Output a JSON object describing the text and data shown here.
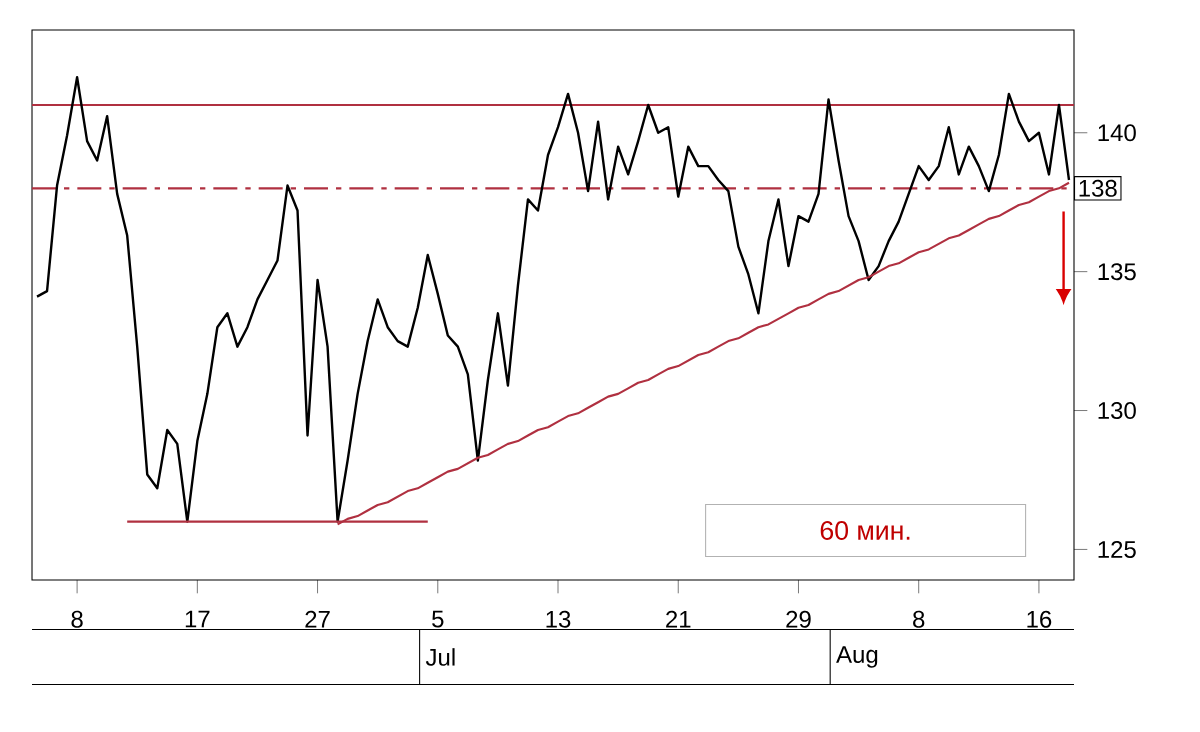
{
  "chart_data": {
    "type": "line",
    "categories": [
      null,
      null,
      null,
      null,
      "8",
      null,
      null,
      null,
      null,
      null,
      null,
      null,
      null,
      null,
      null,
      null,
      "17",
      null,
      null,
      null,
      null,
      null,
      null,
      null,
      null,
      null,
      null,
      null,
      "27",
      null,
      null,
      null,
      null,
      null,
      null,
      null,
      null,
      null,
      null,
      null,
      "5",
      null,
      null,
      null,
      null,
      null,
      null,
      null,
      null,
      null,
      null,
      null,
      "13",
      null,
      null,
      null,
      null,
      null,
      null,
      null,
      null,
      null,
      null,
      null,
      "21",
      null,
      null,
      null,
      null,
      null,
      null,
      null,
      null,
      null,
      null,
      null,
      "29",
      null,
      null,
      null,
      null,
      null,
      null,
      null,
      null,
      null,
      null,
      null,
      "8",
      null,
      null,
      null,
      null,
      null,
      null,
      null,
      null,
      null,
      null,
      null,
      "16",
      null,
      null,
      null
    ],
    "series": [
      {
        "color": "#000000",
        "values": [
          134.1,
          134.3,
          138.1,
          139.9,
          142.0,
          139.7,
          139.0,
          140.6,
          137.8,
          136.3,
          132.3,
          127.7,
          127.2,
          129.3,
          128.8,
          126.0,
          128.9,
          130.6,
          133.0,
          133.5,
          132.3,
          133.0,
          134.0,
          134.7,
          135.4,
          138.1,
          137.2,
          129.1,
          134.7,
          132.3,
          126.0,
          128.2,
          130.6,
          132.5,
          134.0,
          133.0,
          132.5,
          132.3,
          133.7,
          135.6,
          134.2,
          132.7,
          132.3,
          131.3,
          128.2,
          131.1,
          133.5,
          130.9,
          134.5,
          137.6,
          137.2,
          139.2,
          140.2,
          141.4,
          140.0,
          137.9,
          140.4,
          137.6,
          139.5,
          138.5,
          139.7,
          141.0,
          140.0,
          140.2,
          137.7,
          139.5,
          138.8,
          138.8,
          138.3,
          137.9,
          135.9,
          134.9,
          133.5,
          136.1,
          137.6,
          135.2,
          137.0,
          136.8,
          137.8,
          141.2,
          139.0,
          137.0,
          136.1,
          134.7,
          135.2,
          136.1,
          136.8,
          137.8,
          138.8,
          138.3,
          138.8,
          140.2,
          138.5,
          139.5,
          138.8,
          137.9,
          139.2,
          141.4,
          140.4,
          139.7,
          140.0,
          138.5,
          141.0,
          138.3
        ]
      },
      {
        "color": "#b03040",
        "values": [
          null,
          null,
          null,
          null,
          null,
          null,
          null,
          null,
          null,
          126.0,
          126.0,
          126.0,
          126.0,
          126.0,
          126.0,
          126.0,
          126.0,
          126.0,
          126.0,
          126.0,
          126.0,
          126.0,
          126.0,
          126.0,
          126.0,
          126.0,
          126.0,
          126.0,
          126.0,
          126.0,
          126.0,
          126.0,
          126.0,
          126.0,
          126.0,
          126.0,
          126.0,
          126.0,
          126.0,
          126.0,
          null,
          null,
          null,
          null,
          null,
          null,
          null,
          null,
          null,
          null,
          null,
          null,
          null,
          null,
          null,
          null,
          null,
          null,
          null,
          null,
          null,
          null,
          null,
          null,
          null,
          null,
          null,
          null,
          null,
          null,
          null,
          null,
          null,
          null,
          null,
          null,
          null,
          null,
          null,
          null,
          null,
          null,
          null,
          null,
          null,
          null,
          null,
          null,
          null,
          null,
          null,
          null,
          null,
          null,
          null,
          null,
          null,
          null,
          null,
          null,
          null,
          null,
          null,
          null
        ]
      },
      {
        "color": "#b03040",
        "values": [
          null,
          null,
          null,
          null,
          null,
          null,
          null,
          null,
          null,
          null,
          null,
          null,
          null,
          null,
          null,
          null,
          null,
          null,
          null,
          null,
          null,
          null,
          null,
          null,
          null,
          null,
          null,
          null,
          null,
          null,
          125.9,
          126.1,
          126.2,
          126.4,
          126.6,
          126.7,
          126.9,
          127.1,
          127.2,
          127.4,
          127.6,
          127.8,
          127.9,
          128.1,
          128.3,
          128.4,
          128.6,
          128.8,
          128.9,
          129.1,
          129.3,
          129.4,
          129.6,
          129.8,
          129.9,
          130.1,
          130.3,
          130.5,
          130.6,
          130.8,
          131.0,
          131.1,
          131.3,
          131.5,
          131.6,
          131.8,
          132.0,
          132.1,
          132.3,
          132.5,
          132.6,
          132.8,
          133.0,
          133.1,
          133.3,
          133.5,
          133.7,
          133.8,
          134.0,
          134.2,
          134.3,
          134.5,
          134.7,
          134.8,
          135.0,
          135.2,
          135.3,
          135.5,
          135.7,
          135.8,
          136.0,
          136.2,
          136.3,
          136.5,
          136.7,
          136.9,
          137.0,
          137.2,
          137.4,
          137.5,
          137.7,
          137.9,
          138.0,
          138.2
        ]
      }
    ],
    "ref_lines": [
      {
        "axis": "y",
        "value": 141,
        "color": "#b03040",
        "line_style": "solid"
      },
      {
        "axis": "y",
        "value": 138,
        "label": "138",
        "color": "#b03040",
        "line_style": "dashed"
      }
    ],
    "annotations": [
      "60 мин.",
      "Jul",
      "Aug"
    ],
    "ylim": [
      123.9,
      143.7
    ],
    "yticks": [
      125,
      130,
      135,
      140
    ]
  }
}
